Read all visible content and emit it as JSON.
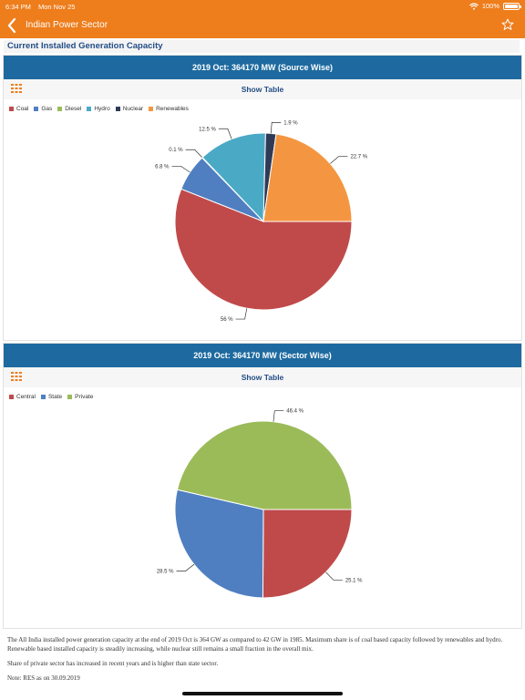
{
  "status_bar": {
    "time": "6:34 PM",
    "date": "Mon Nov 25",
    "battery": "100%"
  },
  "nav": {
    "title": "Indian Power Sector",
    "back_icon": "chevron-left-icon",
    "star_icon": "star-outline-icon"
  },
  "section_title": "Current Installed Generation Capacity",
  "show_table_label": "Show Table",
  "colors": {
    "orange": "#ee7d1c",
    "header_blue": "#1e6aa0"
  },
  "chart_data": [
    {
      "type": "pie",
      "title": "2019 Oct: 364170 MW (Source Wise)",
      "legend_position": "top-left",
      "slices": [
        {
          "label": "Coal",
          "value": 56,
          "display": "56 %",
          "color": "#c04a4a"
        },
        {
          "label": "Gas",
          "value": 6.8,
          "display": "6.8 %",
          "color": "#4f7fc1"
        },
        {
          "label": "Diesel",
          "value": 0.1,
          "display": "0.1 %",
          "color": "#9bbb59"
        },
        {
          "label": "Hydro",
          "value": 12.5,
          "display": "12.5 %",
          "color": "#4aaac6"
        },
        {
          "label": "Nuclear",
          "value": 1.9,
          "display": "1.9 %",
          "color": "#2f3a57"
        },
        {
          "label": "Renewables",
          "value": 22.7,
          "display": "22.7 %",
          "color": "#f49641"
        }
      ]
    },
    {
      "type": "pie",
      "title": "2019 Oct: 364170 MW (Sector Wise)",
      "legend_position": "top-left",
      "slices": [
        {
          "label": "Central",
          "value": 25.1,
          "display": "25.1 %",
          "color": "#c04a4a"
        },
        {
          "label": "State",
          "value": 28.5,
          "display": "28.5 %",
          "color": "#4f7fc1"
        },
        {
          "label": "Private",
          "value": 46.4,
          "display": "46.4 %",
          "color": "#9bbb59"
        }
      ]
    }
  ],
  "description": {
    "p1": "The All India installed power generation capacity at the end of 2019 Oct is 364 GW as compared to 42 GW in 1985. Maximum share is of coal based capacity followed by renewables and hydro. Renewable based installed capacity is steadily increasing, while nuclear still remains a small fraction in the overall mix.",
    "p2": "Share of private sector has increased in recent years and is higher than state sector.",
    "p3": "Note: RES as on 30.09.2019"
  }
}
